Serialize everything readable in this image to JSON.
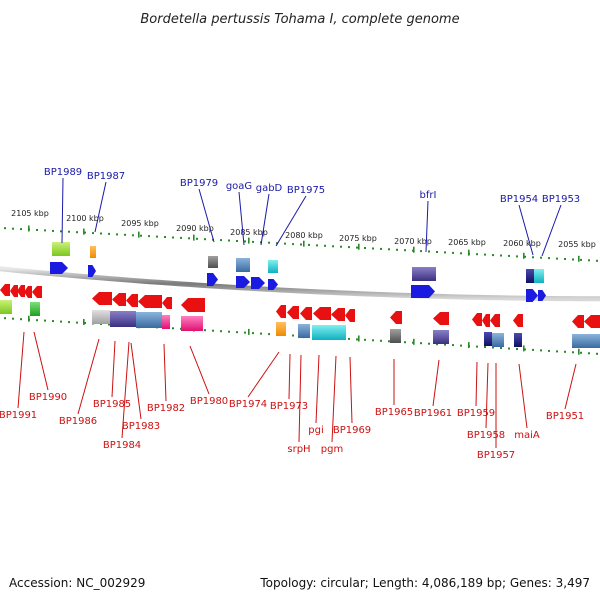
{
  "title": "Bordetella pertussis Tohama I, complete genome",
  "footer": {
    "accession": "Accession: NC_002929",
    "summary": "Topology: circular; Length: 4,086,189 bp; Genes: 3,497"
  },
  "colors": {
    "top_label": "#1a1aa8",
    "bottom_label": "#cc1111",
    "backbone": "#8a8a8a",
    "tick": "#2a8a2a",
    "forward_arrow": "#1a1ae0",
    "reverse_arrow": "#e81010"
  },
  "ticks": [
    {
      "label": "2105 kbp"
    },
    {
      "label": "2100 kbp"
    },
    {
      "label": "2095 kbp"
    },
    {
      "label": "2090 kbp"
    },
    {
      "label": "2085 kbp"
    },
    {
      "label": "2080 kbp"
    },
    {
      "label": "2075 kbp"
    },
    {
      "label": "2070 kbp"
    },
    {
      "label": "2065 kbp"
    },
    {
      "label": "2060 kbp"
    },
    {
      "label": "2055 kbp"
    }
  ],
  "top_genes": [
    {
      "label": "BP1989"
    },
    {
      "label": "BP1987"
    },
    {
      "label": "BP1979"
    },
    {
      "label": "goaG"
    },
    {
      "label": "gabD"
    },
    {
      "label": "BP1975"
    },
    {
      "label": "bfrI"
    },
    {
      "label": "BP1954"
    },
    {
      "label": "BP1953"
    }
  ],
  "bottom_genes": [
    {
      "label": "BP1991"
    },
    {
      "label": "BP1990"
    },
    {
      "label": "BP1986"
    },
    {
      "label": "BP1985"
    },
    {
      "label": "BP1984"
    },
    {
      "label": "BP1983"
    },
    {
      "label": "BP1982"
    },
    {
      "label": "BP1980"
    },
    {
      "label": "BP1974"
    },
    {
      "label": "BP1973"
    },
    {
      "label": "srpH"
    },
    {
      "label": "pgi"
    },
    {
      "label": "pgm"
    },
    {
      "label": "BP1969"
    },
    {
      "label": "BP1965"
    },
    {
      "label": "BP1961"
    },
    {
      "label": "BP1959"
    },
    {
      "label": "BP1958"
    },
    {
      "label": "BP1957"
    },
    {
      "label": "maiA"
    },
    {
      "label": "BP1951"
    }
  ]
}
